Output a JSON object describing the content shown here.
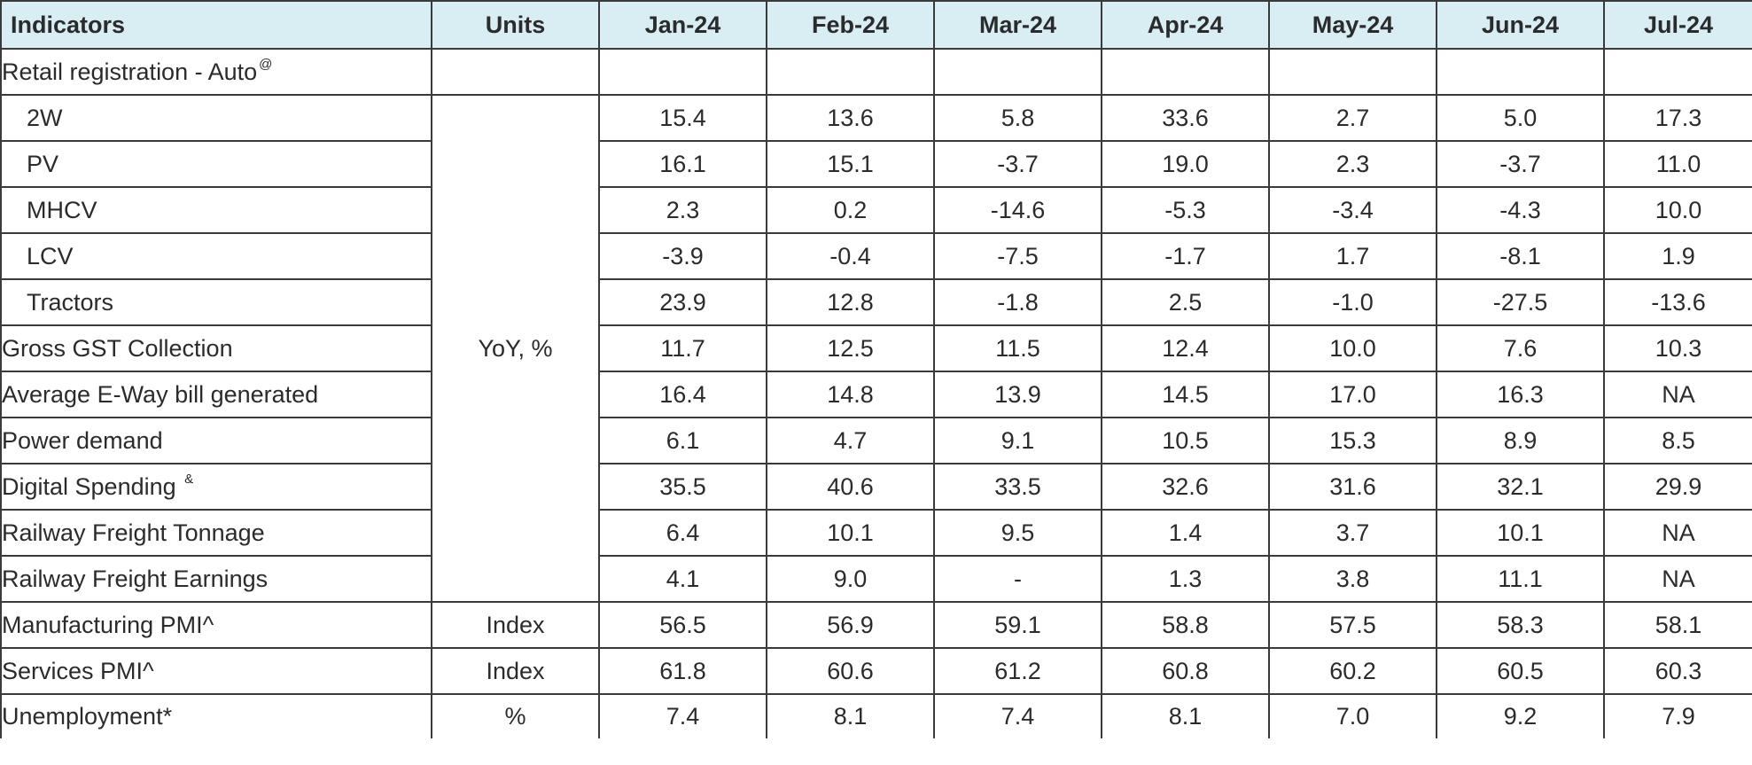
{
  "table": {
    "header": {
      "indicators": "Indicators",
      "units": "Units",
      "months": [
        "Jan-24",
        "Feb-24",
        "Mar-24",
        "Apr-24",
        "May-24",
        "Jun-24",
        "Jul-24"
      ]
    },
    "section_retail": {
      "label": "Retail registration - Auto",
      "note": "@"
    },
    "yoy_unit": "YoY, %",
    "yoy_rows": [
      {
        "label": "2W",
        "note": "",
        "sub": true,
        "values": [
          "15.4",
          "13.6",
          "5.8",
          "33.6",
          "2.7",
          "5.0",
          "17.3"
        ]
      },
      {
        "label": "PV",
        "note": "",
        "sub": true,
        "values": [
          "16.1",
          "15.1",
          "-3.7",
          "19.0",
          "2.3",
          "-3.7",
          "11.0"
        ]
      },
      {
        "label": "MHCV",
        "note": "",
        "sub": true,
        "values": [
          "2.3",
          "0.2",
          "-14.6",
          "-5.3",
          "-3.4",
          "-4.3",
          "10.0"
        ]
      },
      {
        "label": "LCV",
        "note": "",
        "sub": true,
        "values": [
          "-3.9",
          "-0.4",
          "-7.5",
          "-1.7",
          "1.7",
          "-8.1",
          "1.9"
        ]
      },
      {
        "label": "Tractors",
        "note": "",
        "sub": true,
        "values": [
          "23.9",
          "12.8",
          "-1.8",
          "2.5",
          "-1.0",
          "-27.5",
          "-13.6"
        ]
      },
      {
        "label": "Gross GST Collection",
        "note": "",
        "sub": false,
        "values": [
          "11.7",
          "12.5",
          "11.5",
          "12.4",
          "10.0",
          "7.6",
          "10.3"
        ]
      },
      {
        "label": "Average E-Way bill generated",
        "note": "",
        "sub": false,
        "values": [
          "16.4",
          "14.8",
          "13.9",
          "14.5",
          "17.0",
          "16.3",
          "NA"
        ]
      },
      {
        "label": "Power demand",
        "note": "",
        "sub": false,
        "values": [
          "6.1",
          "4.7",
          "9.1",
          "10.5",
          "15.3",
          "8.9",
          "8.5"
        ]
      },
      {
        "label": "Digital Spending ",
        "note": "&",
        "sub": false,
        "values": [
          "35.5",
          "40.6",
          "33.5",
          "32.6",
          "31.6",
          "32.1",
          "29.9"
        ]
      },
      {
        "label": "Railway Freight Tonnage",
        "note": "",
        "sub": false,
        "values": [
          "6.4",
          "10.1",
          "9.5",
          "1.4",
          "3.7",
          "10.1",
          "NA"
        ]
      },
      {
        "label": "Railway Freight Earnings",
        "note": "",
        "sub": false,
        "values": [
          "4.1",
          "9.0",
          "-",
          "1.3",
          "3.8",
          "11.1",
          "NA"
        ]
      }
    ],
    "other_rows": [
      {
        "label": "Manufacturing PMI^",
        "unit": "Index",
        "values": [
          "56.5",
          "56.9",
          "59.1",
          "58.8",
          "57.5",
          "58.3",
          "58.1"
        ]
      },
      {
        "label": "Services PMI^",
        "unit": "Index",
        "values": [
          "61.8",
          "60.6",
          "61.2",
          "60.8",
          "60.2",
          "60.5",
          "60.3"
        ]
      },
      {
        "label": "Unemployment*",
        "unit": "%",
        "values": [
          "7.4",
          "8.1",
          "7.4",
          "8.1",
          "7.0",
          "9.2",
          "7.9"
        ]
      }
    ],
    "colors": {
      "header_bg": "#d8eef3",
      "border": "#3a3a3a",
      "text": "#2b2b2b"
    }
  }
}
